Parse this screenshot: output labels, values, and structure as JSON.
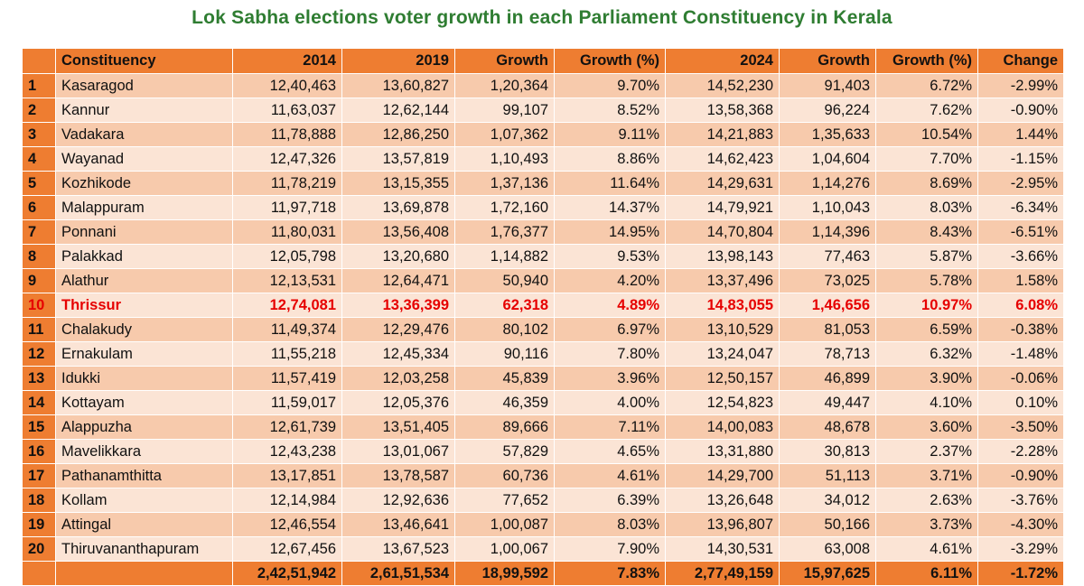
{
  "title": "Lok Sabha elections voter growth in each Parliament Constituency in Kerala",
  "headers": [
    "",
    "Constituency",
    "2014",
    "2019",
    "Growth",
    "Growth (%)",
    "2024",
    "Growth",
    "Growth (%)",
    "Change"
  ],
  "rows": [
    [
      "1",
      "Kasaragod",
      "12,40,463",
      "13,60,827",
      "1,20,364",
      "9.70%",
      "14,52,230",
      "91,403",
      "6.72%",
      "-2.99%"
    ],
    [
      "2",
      "Kannur",
      "11,63,037",
      "12,62,144",
      "99,107",
      "8.52%",
      "13,58,368",
      "96,224",
      "7.62%",
      "-0.90%"
    ],
    [
      "3",
      "Vadakara",
      "11,78,888",
      "12,86,250",
      "1,07,362",
      "9.11%",
      "14,21,883",
      "1,35,633",
      "10.54%",
      "1.44%"
    ],
    [
      "4",
      "Wayanad",
      "12,47,326",
      "13,57,819",
      "1,10,493",
      "8.86%",
      "14,62,423",
      "1,04,604",
      "7.70%",
      "-1.15%"
    ],
    [
      "5",
      "Kozhikode",
      "11,78,219",
      "13,15,355",
      "1,37,136",
      "11.64%",
      "14,29,631",
      "1,14,276",
      "8.69%",
      "-2.95%"
    ],
    [
      "6",
      "Malappuram",
      "11,97,718",
      "13,69,878",
      "1,72,160",
      "14.37%",
      "14,79,921",
      "1,10,043",
      "8.03%",
      "-6.34%"
    ],
    [
      "7",
      "Ponnani",
      "11,80,031",
      "13,56,408",
      "1,76,377",
      "14.95%",
      "14,70,804",
      "1,14,396",
      "8.43%",
      "-6.51%"
    ],
    [
      "8",
      "Palakkad",
      "12,05,798",
      "13,20,680",
      "1,14,882",
      "9.53%",
      "13,98,143",
      "77,463",
      "5.87%",
      "-3.66%"
    ],
    [
      "9",
      "Alathur",
      "12,13,531",
      "12,64,471",
      "50,940",
      "4.20%",
      "13,37,496",
      "73,025",
      "5.78%",
      "1.58%"
    ],
    [
      "10",
      "Thrissur",
      "12,74,081",
      "13,36,399",
      "62,318",
      "4.89%",
      "14,83,055",
      "1,46,656",
      "10.97%",
      "6.08%"
    ],
    [
      "11",
      "Chalakudy",
      "11,49,374",
      "12,29,476",
      "80,102",
      "6.97%",
      "13,10,529",
      "81,053",
      "6.59%",
      "-0.38%"
    ],
    [
      "12",
      "Ernakulam",
      "11,55,218",
      "12,45,334",
      "90,116",
      "7.80%",
      "13,24,047",
      "78,713",
      "6.32%",
      "-1.48%"
    ],
    [
      "13",
      "Idukki",
      "11,57,419",
      "12,03,258",
      "45,839",
      "3.96%",
      "12,50,157",
      "46,899",
      "3.90%",
      "-0.06%"
    ],
    [
      "14",
      "Kottayam",
      "11,59,017",
      "12,05,376",
      "46,359",
      "4.00%",
      "12,54,823",
      "49,447",
      "4.10%",
      "0.10%"
    ],
    [
      "15",
      "Alappuzha",
      "12,61,739",
      "13,51,405",
      "89,666",
      "7.11%",
      "14,00,083",
      "48,678",
      "3.60%",
      "-3.50%"
    ],
    [
      "16",
      "Mavelikkara",
      "12,43,238",
      "13,01,067",
      "57,829",
      "4.65%",
      "13,31,880",
      "30,813",
      "2.37%",
      "-2.28%"
    ],
    [
      "17",
      "Pathanamthitta",
      "13,17,851",
      "13,78,587",
      "60,736",
      "4.61%",
      "14,29,700",
      "51,113",
      "3.71%",
      "-0.90%"
    ],
    [
      "18",
      "Kollam",
      "12,14,984",
      "12,92,636",
      "77,652",
      "6.39%",
      "13,26,648",
      "34,012",
      "2.63%",
      "-3.76%"
    ],
    [
      "19",
      "Attingal",
      "12,46,554",
      "13,46,641",
      "1,00,087",
      "8.03%",
      "13,96,807",
      "50,166",
      "3.73%",
      "-4.30%"
    ],
    [
      "20",
      "Thiruvananthapuram",
      "12,67,456",
      "13,67,523",
      "1,00,067",
      "7.90%",
      "14,30,531",
      "63,008",
      "4.61%",
      "-3.29%"
    ]
  ],
  "highlight_row": "10",
  "total": [
    "",
    "",
    "2,42,51,942",
    "2,61,51,534",
    "18,99,592",
    "7.83%",
    "2,77,49,159",
    "15,97,625",
    "6.11%",
    "-1.72%"
  ],
  "colors": {
    "title": "#2f7d32",
    "header": "#ee7d31",
    "row_dark": "#f7caac",
    "row_light": "#fbe4d5",
    "highlight": "#e60000"
  }
}
